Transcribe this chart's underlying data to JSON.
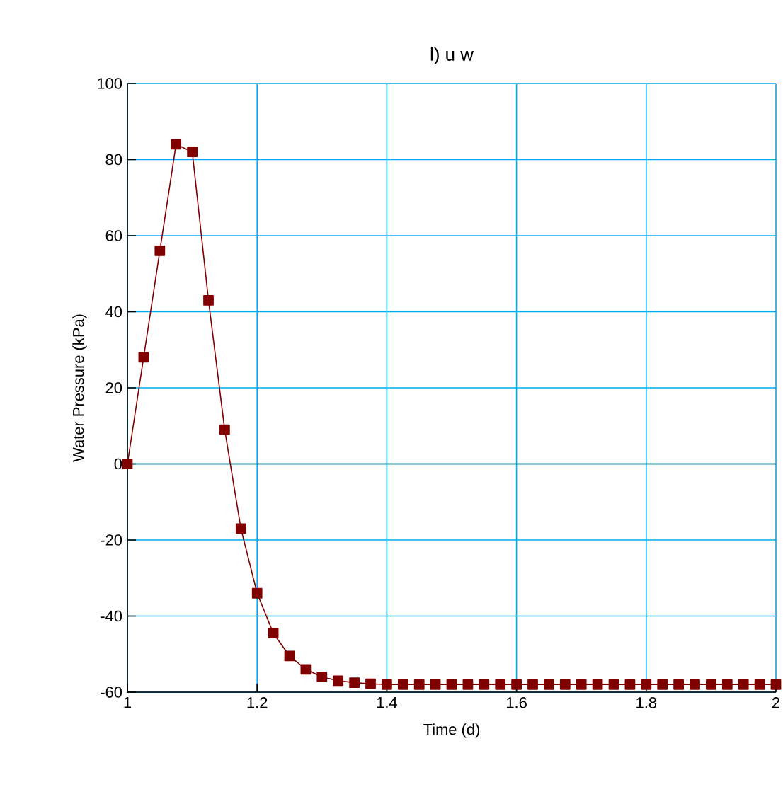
{
  "chart_data": {
    "type": "line",
    "title": "l) u w",
    "xlabel": "Time (d)",
    "ylabel": "Water Pressure (kPa)",
    "x": [
      1,
      1.025,
      1.05,
      1.075,
      1.1,
      1.125,
      1.15,
      1.175,
      1.2,
      1.225,
      1.25,
      1.275,
      1.3,
      1.325,
      1.35,
      1.375,
      1.4,
      1.425,
      1.45,
      1.475,
      1.5,
      1.525,
      1.55,
      1.575,
      1.6,
      1.625,
      1.65,
      1.675,
      1.7,
      1.725,
      1.75,
      1.775,
      1.8,
      1.825,
      1.85,
      1.875,
      1.9,
      1.925,
      1.95,
      1.975,
      2
    ],
    "series": [
      {
        "color": "#800000",
        "values": [
          0,
          28,
          56,
          84,
          82,
          43,
          9,
          -17,
          -34,
          -44.5,
          -50.5,
          -54,
          -56,
          -57,
          -57.5,
          -57.8,
          -58,
          -58,
          -58,
          -58,
          -58,
          -58,
          -58,
          -58,
          -58,
          -58,
          -58,
          -58,
          -58,
          -58,
          -58,
          -58,
          -58,
          -58,
          -58,
          -58,
          -58,
          -58,
          -58,
          -58,
          -58
        ]
      }
    ],
    "xlim": [
      1,
      2
    ],
    "ylim": [
      -60,
      100
    ],
    "xticks": [
      1,
      1.2,
      1.4,
      1.6,
      1.8,
      2
    ],
    "yticks": [
      -60,
      -40,
      -20,
      0,
      20,
      40,
      60,
      80,
      100
    ],
    "grid": true,
    "marker": "square",
    "line_style": "solid",
    "ref_lines": [
      {
        "axis": "y",
        "value": 0,
        "color": "#006666"
      }
    ]
  }
}
